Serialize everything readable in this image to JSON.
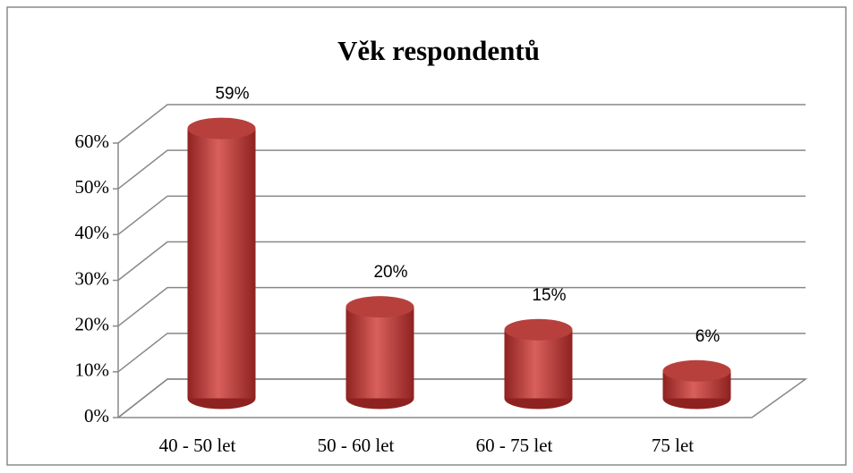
{
  "chart_data": {
    "type": "bar",
    "title": "Věk respondentů",
    "categories": [
      "40 - 50 let",
      "50 - 60 let",
      "60 - 75 let",
      "75 let"
    ],
    "values": [
      59,
      20,
      15,
      6
    ],
    "value_labels": [
      "59%",
      "20%",
      "15%",
      "6%"
    ],
    "color": "#c0504d",
    "ylim": [
      0,
      60
    ],
    "yticks": [
      {
        "value": 0,
        "label": "0%"
      },
      {
        "value": 10,
        "label": "10%"
      },
      {
        "value": 20,
        "label": "20%"
      },
      {
        "value": 30,
        "label": "30%"
      },
      {
        "value": 40,
        "label": "40%"
      },
      {
        "value": 50,
        "label": "50%"
      },
      {
        "value": 60,
        "label": "60%"
      }
    ],
    "grid": true
  }
}
